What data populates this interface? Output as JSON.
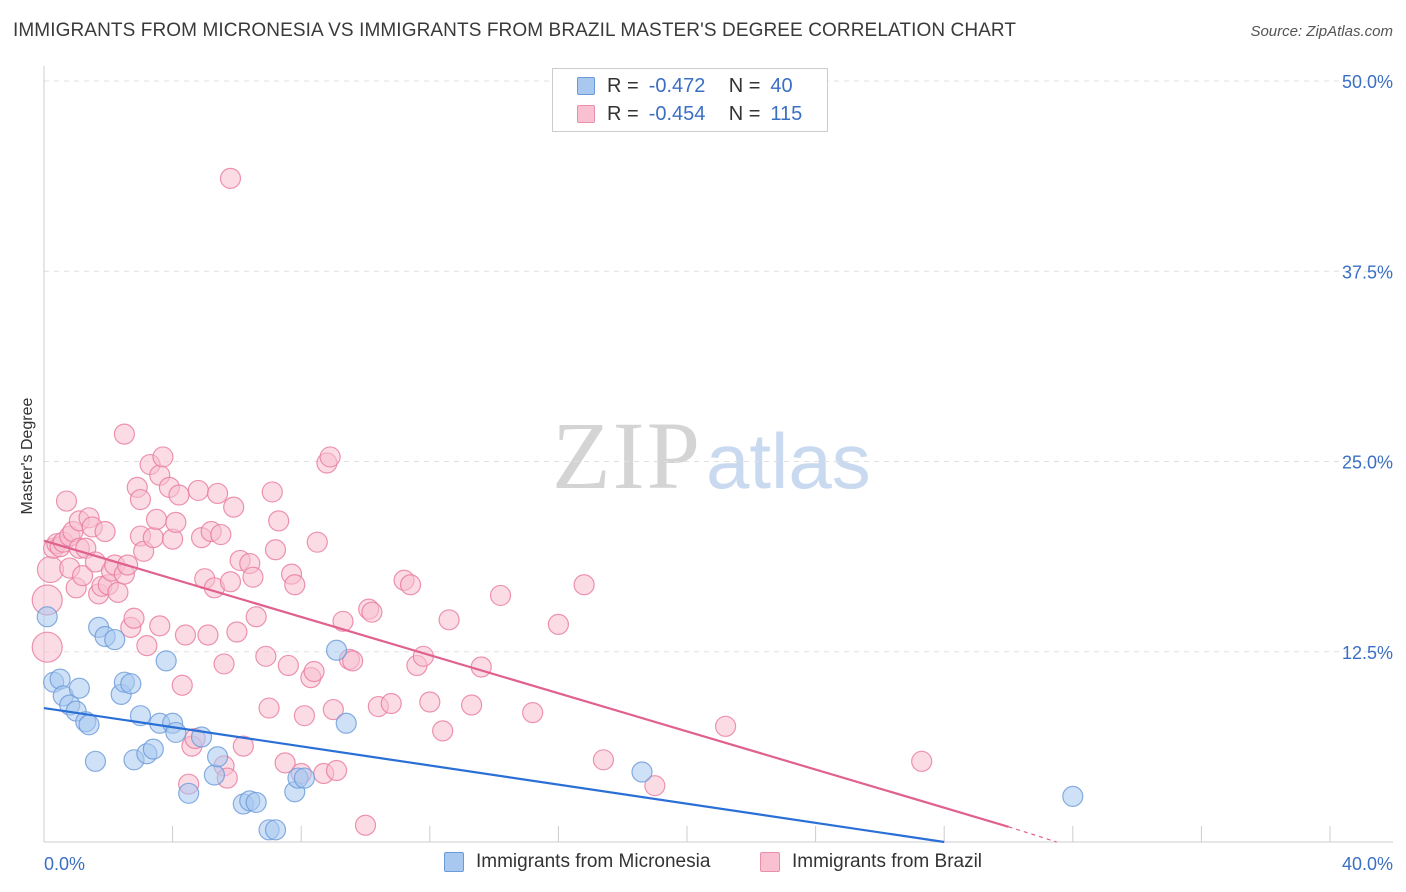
{
  "title": "IMMIGRANTS FROM MICRONESIA VS IMMIGRANTS FROM BRAZIL MASTER'S DEGREE CORRELATION CHART",
  "source": "Source: ZipAtlas.com",
  "watermark": {
    "zip": "ZIP",
    "atlas": "atlas"
  },
  "legend": {
    "rows": [
      {
        "r_label": "R =",
        "r_value": "-0.472",
        "n_label": "N =",
        "n_value": "40",
        "color": "#a8c8f0",
        "border": "#6a9ad8"
      },
      {
        "r_label": "R =",
        "r_value": "-0.454",
        "n_label": "N =",
        "n_value": "115",
        "color": "#f8c0d0",
        "border": "#e890aa"
      }
    ]
  },
  "bottom_legend": [
    {
      "label": "Immigrants from Micronesia",
      "color": "#a8c8f0",
      "border": "#6a9ad8"
    },
    {
      "label": "Immigrants from Brazil",
      "color": "#f8c0d0",
      "border": "#e890aa"
    }
  ],
  "chart_data": {
    "type": "scatter",
    "title": "IMMIGRANTS FROM MICRONESIA VS IMMIGRANTS FROM BRAZIL MASTER'S DEGREE CORRELATION CHART",
    "xlabel": "",
    "ylabel": "Master's Degree",
    "xlim": [
      0,
      40
    ],
    "ylim": [
      0,
      50
    ],
    "x_tick_labels": [
      "0.0%",
      "40.0%"
    ],
    "y_ticks": [
      12.5,
      25.0,
      37.5,
      50.0
    ],
    "y_tick_labels": [
      "12.5%",
      "25.0%",
      "37.5%",
      "50.0%"
    ],
    "grid": "horizontal dashed",
    "series": [
      {
        "name": "Immigrants from Micronesia",
        "color": "#6a9ad8",
        "fill": "#a8c8f0",
        "trend": {
          "x": [
            0,
            28.0
          ],
          "y": [
            8.8,
            0.0
          ]
        },
        "points": [
          [
            0.1,
            14.8
          ],
          [
            0.3,
            10.5
          ],
          [
            0.5,
            10.7
          ],
          [
            0.6,
            9.6
          ],
          [
            0.8,
            9.0
          ],
          [
            1.1,
            10.1
          ],
          [
            1.0,
            8.6
          ],
          [
            1.3,
            7.9
          ],
          [
            1.4,
            7.7
          ],
          [
            1.6,
            5.3
          ],
          [
            1.7,
            14.1
          ],
          [
            1.9,
            13.5
          ],
          [
            2.2,
            13.3
          ],
          [
            2.4,
            9.7
          ],
          [
            2.5,
            10.5
          ],
          [
            2.7,
            10.4
          ],
          [
            2.8,
            5.4
          ],
          [
            3.0,
            8.3
          ],
          [
            3.2,
            5.8
          ],
          [
            3.4,
            6.1
          ],
          [
            3.6,
            7.8
          ],
          [
            3.8,
            11.9
          ],
          [
            4.0,
            7.8
          ],
          [
            4.1,
            7.2
          ],
          [
            4.5,
            3.2
          ],
          [
            4.9,
            6.9
          ],
          [
            5.3,
            4.4
          ],
          [
            5.4,
            5.6
          ],
          [
            6.2,
            2.5
          ],
          [
            6.4,
            2.7
          ],
          [
            6.6,
            2.6
          ],
          [
            7.0,
            0.8
          ],
          [
            7.2,
            0.8
          ],
          [
            7.8,
            3.3
          ],
          [
            7.9,
            4.2
          ],
          [
            8.1,
            4.2
          ],
          [
            9.1,
            12.6
          ],
          [
            9.4,
            7.8
          ],
          [
            18.6,
            4.6
          ],
          [
            32.0,
            3.0
          ]
        ]
      },
      {
        "name": "Immigrants from Brazil",
        "color": "#e8799e",
        "fill": "#f8c0d0",
        "trend": {
          "x": [
            0,
            30.0
          ],
          "y": [
            19.8,
            1.0
          ]
        },
        "trend_dashed": {
          "x": [
            30.0,
            31.5
          ],
          "y": [
            1.0,
            0.0
          ]
        },
        "points": [
          [
            0.1,
            12.8
          ],
          [
            0.1,
            15.9
          ],
          [
            0.2,
            17.9
          ],
          [
            0.3,
            19.3
          ],
          [
            0.4,
            19.6
          ],
          [
            0.5,
            19.4
          ],
          [
            0.6,
            19.7
          ],
          [
            0.7,
            22.4
          ],
          [
            0.8,
            20.1
          ],
          [
            0.8,
            18.0
          ],
          [
            0.9,
            20.4
          ],
          [
            1.0,
            16.7
          ],
          [
            1.1,
            21.1
          ],
          [
            1.1,
            19.3
          ],
          [
            1.2,
            17.5
          ],
          [
            1.3,
            19.3
          ],
          [
            1.4,
            21.3
          ],
          [
            1.5,
            20.7
          ],
          [
            1.6,
            18.4
          ],
          [
            1.7,
            16.3
          ],
          [
            1.8,
            16.8
          ],
          [
            1.9,
            20.4
          ],
          [
            2.0,
            16.9
          ],
          [
            2.1,
            17.8
          ],
          [
            2.2,
            18.2
          ],
          [
            2.3,
            16.4
          ],
          [
            2.5,
            26.8
          ],
          [
            2.5,
            17.6
          ],
          [
            2.6,
            18.2
          ],
          [
            2.7,
            14.1
          ],
          [
            2.8,
            14.7
          ],
          [
            2.9,
            23.3
          ],
          [
            3.0,
            20.1
          ],
          [
            3.0,
            22.5
          ],
          [
            3.1,
            19.1
          ],
          [
            3.2,
            12.9
          ],
          [
            3.3,
            24.8
          ],
          [
            3.4,
            20.0
          ],
          [
            3.5,
            21.2
          ],
          [
            3.6,
            14.2
          ],
          [
            3.6,
            24.1
          ],
          [
            3.7,
            25.3
          ],
          [
            3.9,
            23.3
          ],
          [
            4.0,
            19.9
          ],
          [
            4.1,
            21.0
          ],
          [
            4.2,
            22.8
          ],
          [
            4.3,
            10.3
          ],
          [
            4.4,
            13.6
          ],
          [
            4.5,
            3.8
          ],
          [
            4.6,
            6.3
          ],
          [
            4.7,
            6.8
          ],
          [
            4.8,
            23.1
          ],
          [
            4.9,
            20.0
          ],
          [
            5.0,
            17.3
          ],
          [
            5.1,
            13.6
          ],
          [
            5.2,
            20.4
          ],
          [
            5.3,
            16.7
          ],
          [
            5.4,
            22.9
          ],
          [
            5.5,
            20.2
          ],
          [
            5.6,
            11.7
          ],
          [
            5.6,
            5.0
          ],
          [
            5.7,
            4.2
          ],
          [
            5.8,
            17.1
          ],
          [
            5.9,
            22.0
          ],
          [
            6.0,
            13.8
          ],
          [
            6.1,
            18.5
          ],
          [
            6.2,
            6.3
          ],
          [
            6.4,
            18.3
          ],
          [
            6.5,
            17.4
          ],
          [
            6.6,
            14.8
          ],
          [
            6.9,
            12.2
          ],
          [
            7.0,
            8.8
          ],
          [
            7.1,
            23.0
          ],
          [
            7.2,
            19.2
          ],
          [
            7.3,
            21.1
          ],
          [
            7.5,
            5.2
          ],
          [
            7.6,
            11.6
          ],
          [
            7.7,
            17.6
          ],
          [
            7.8,
            16.9
          ],
          [
            8.0,
            4.5
          ],
          [
            8.1,
            8.3
          ],
          [
            8.3,
            10.8
          ],
          [
            8.4,
            11.2
          ],
          [
            8.5,
            19.7
          ],
          [
            8.7,
            4.5
          ],
          [
            8.8,
            24.9
          ],
          [
            8.9,
            25.3
          ],
          [
            9.0,
            8.7
          ],
          [
            9.1,
            4.7
          ],
          [
            9.3,
            14.5
          ],
          [
            9.5,
            12.0
          ],
          [
            9.6,
            11.9
          ],
          [
            10.0,
            1.1
          ],
          [
            10.1,
            15.3
          ],
          [
            10.2,
            15.1
          ],
          [
            10.4,
            8.9
          ],
          [
            10.8,
            9.1
          ],
          [
            11.2,
            17.2
          ],
          [
            11.4,
            16.9
          ],
          [
            11.6,
            11.6
          ],
          [
            11.8,
            12.2
          ],
          [
            12.0,
            9.2
          ],
          [
            12.4,
            7.3
          ],
          [
            12.6,
            14.6
          ],
          [
            13.3,
            9.0
          ],
          [
            13.6,
            11.5
          ],
          [
            14.2,
            16.2
          ],
          [
            15.2,
            8.5
          ],
          [
            16.0,
            14.3
          ],
          [
            16.8,
            16.9
          ],
          [
            17.4,
            5.4
          ],
          [
            19.0,
            3.7
          ],
          [
            21.2,
            7.6
          ],
          [
            27.3,
            5.3
          ],
          [
            5.8,
            43.6
          ]
        ]
      }
    ]
  }
}
